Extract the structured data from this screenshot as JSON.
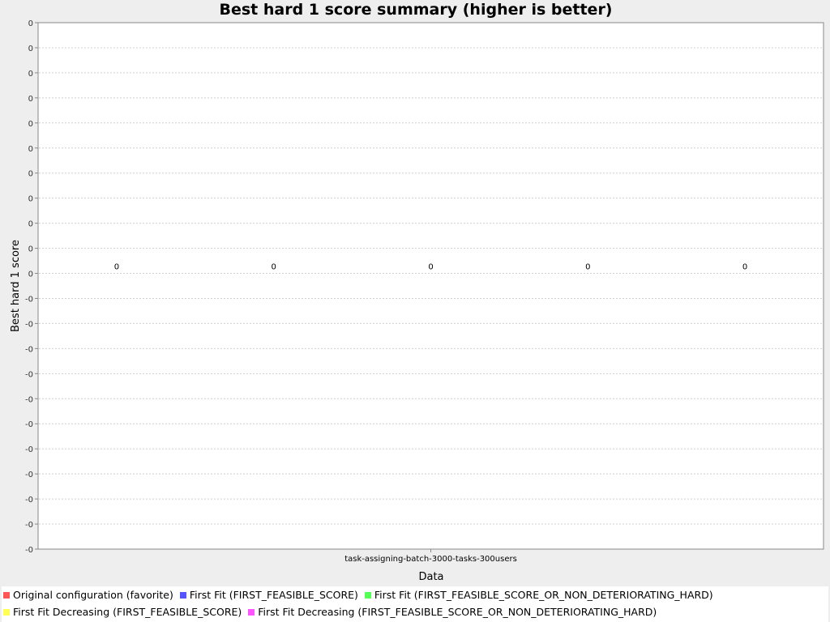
{
  "chart_data": {
    "type": "bar",
    "title": "Best hard 1 score summary (higher is better)",
    "xlabel": "Data",
    "ylabel": "Best hard 1 score",
    "categories": [
      "task-assigning-batch-3000-tasks-300users"
    ],
    "series": [
      {
        "name": "Original configuration (favorite)",
        "values": [
          0
        ],
        "color": "#ff5555"
      },
      {
        "name": "First Fit (FIRST_FEASIBLE_SCORE)",
        "values": [
          0
        ],
        "color": "#5555ff"
      },
      {
        "name": "First Fit (FIRST_FEASIBLE_SCORE_OR_NON_DETERIORATING_HARD)",
        "values": [
          0
        ],
        "color": "#55ff55"
      },
      {
        "name": "First Fit Decreasing (FIRST_FEASIBLE_SCORE)",
        "values": [
          0
        ],
        "color": "#ffff55"
      },
      {
        "name": "First Fit Decreasing (FIRST_FEASIBLE_SCORE_OR_NON_DETERIORATING_HARD)",
        "values": [
          0
        ],
        "color": "#ff55ff"
      }
    ],
    "data_labels": [
      "0",
      "0",
      "0",
      "0",
      "0"
    ],
    "y_tick_labels": [
      "0",
      "0",
      "0",
      "0",
      "0",
      "0",
      "0",
      "0",
      "0",
      "0",
      "0",
      "-0",
      "-0",
      "-0",
      "-0",
      "-0",
      "-0",
      "-0",
      "-0",
      "-0",
      "-0",
      "-0"
    ],
    "grid": true,
    "legend_position": "bottom"
  },
  "legend": {
    "items": [
      {
        "label": "Original configuration (favorite)",
        "color": "#ff5555"
      },
      {
        "label": "First Fit (FIRST_FEASIBLE_SCORE)",
        "color": "#5555ff"
      },
      {
        "label": "First Fit (FIRST_FEASIBLE_SCORE_OR_NON_DETERIORATING_HARD)",
        "color": "#55ff55"
      },
      {
        "label": "First Fit Decreasing (FIRST_FEASIBLE_SCORE)",
        "color": "#ffff55"
      },
      {
        "label": "First Fit Decreasing (FIRST_FEASIBLE_SCORE_OR_NON_DETERIORATING_HARD)",
        "color": "#ff55ff"
      }
    ]
  }
}
